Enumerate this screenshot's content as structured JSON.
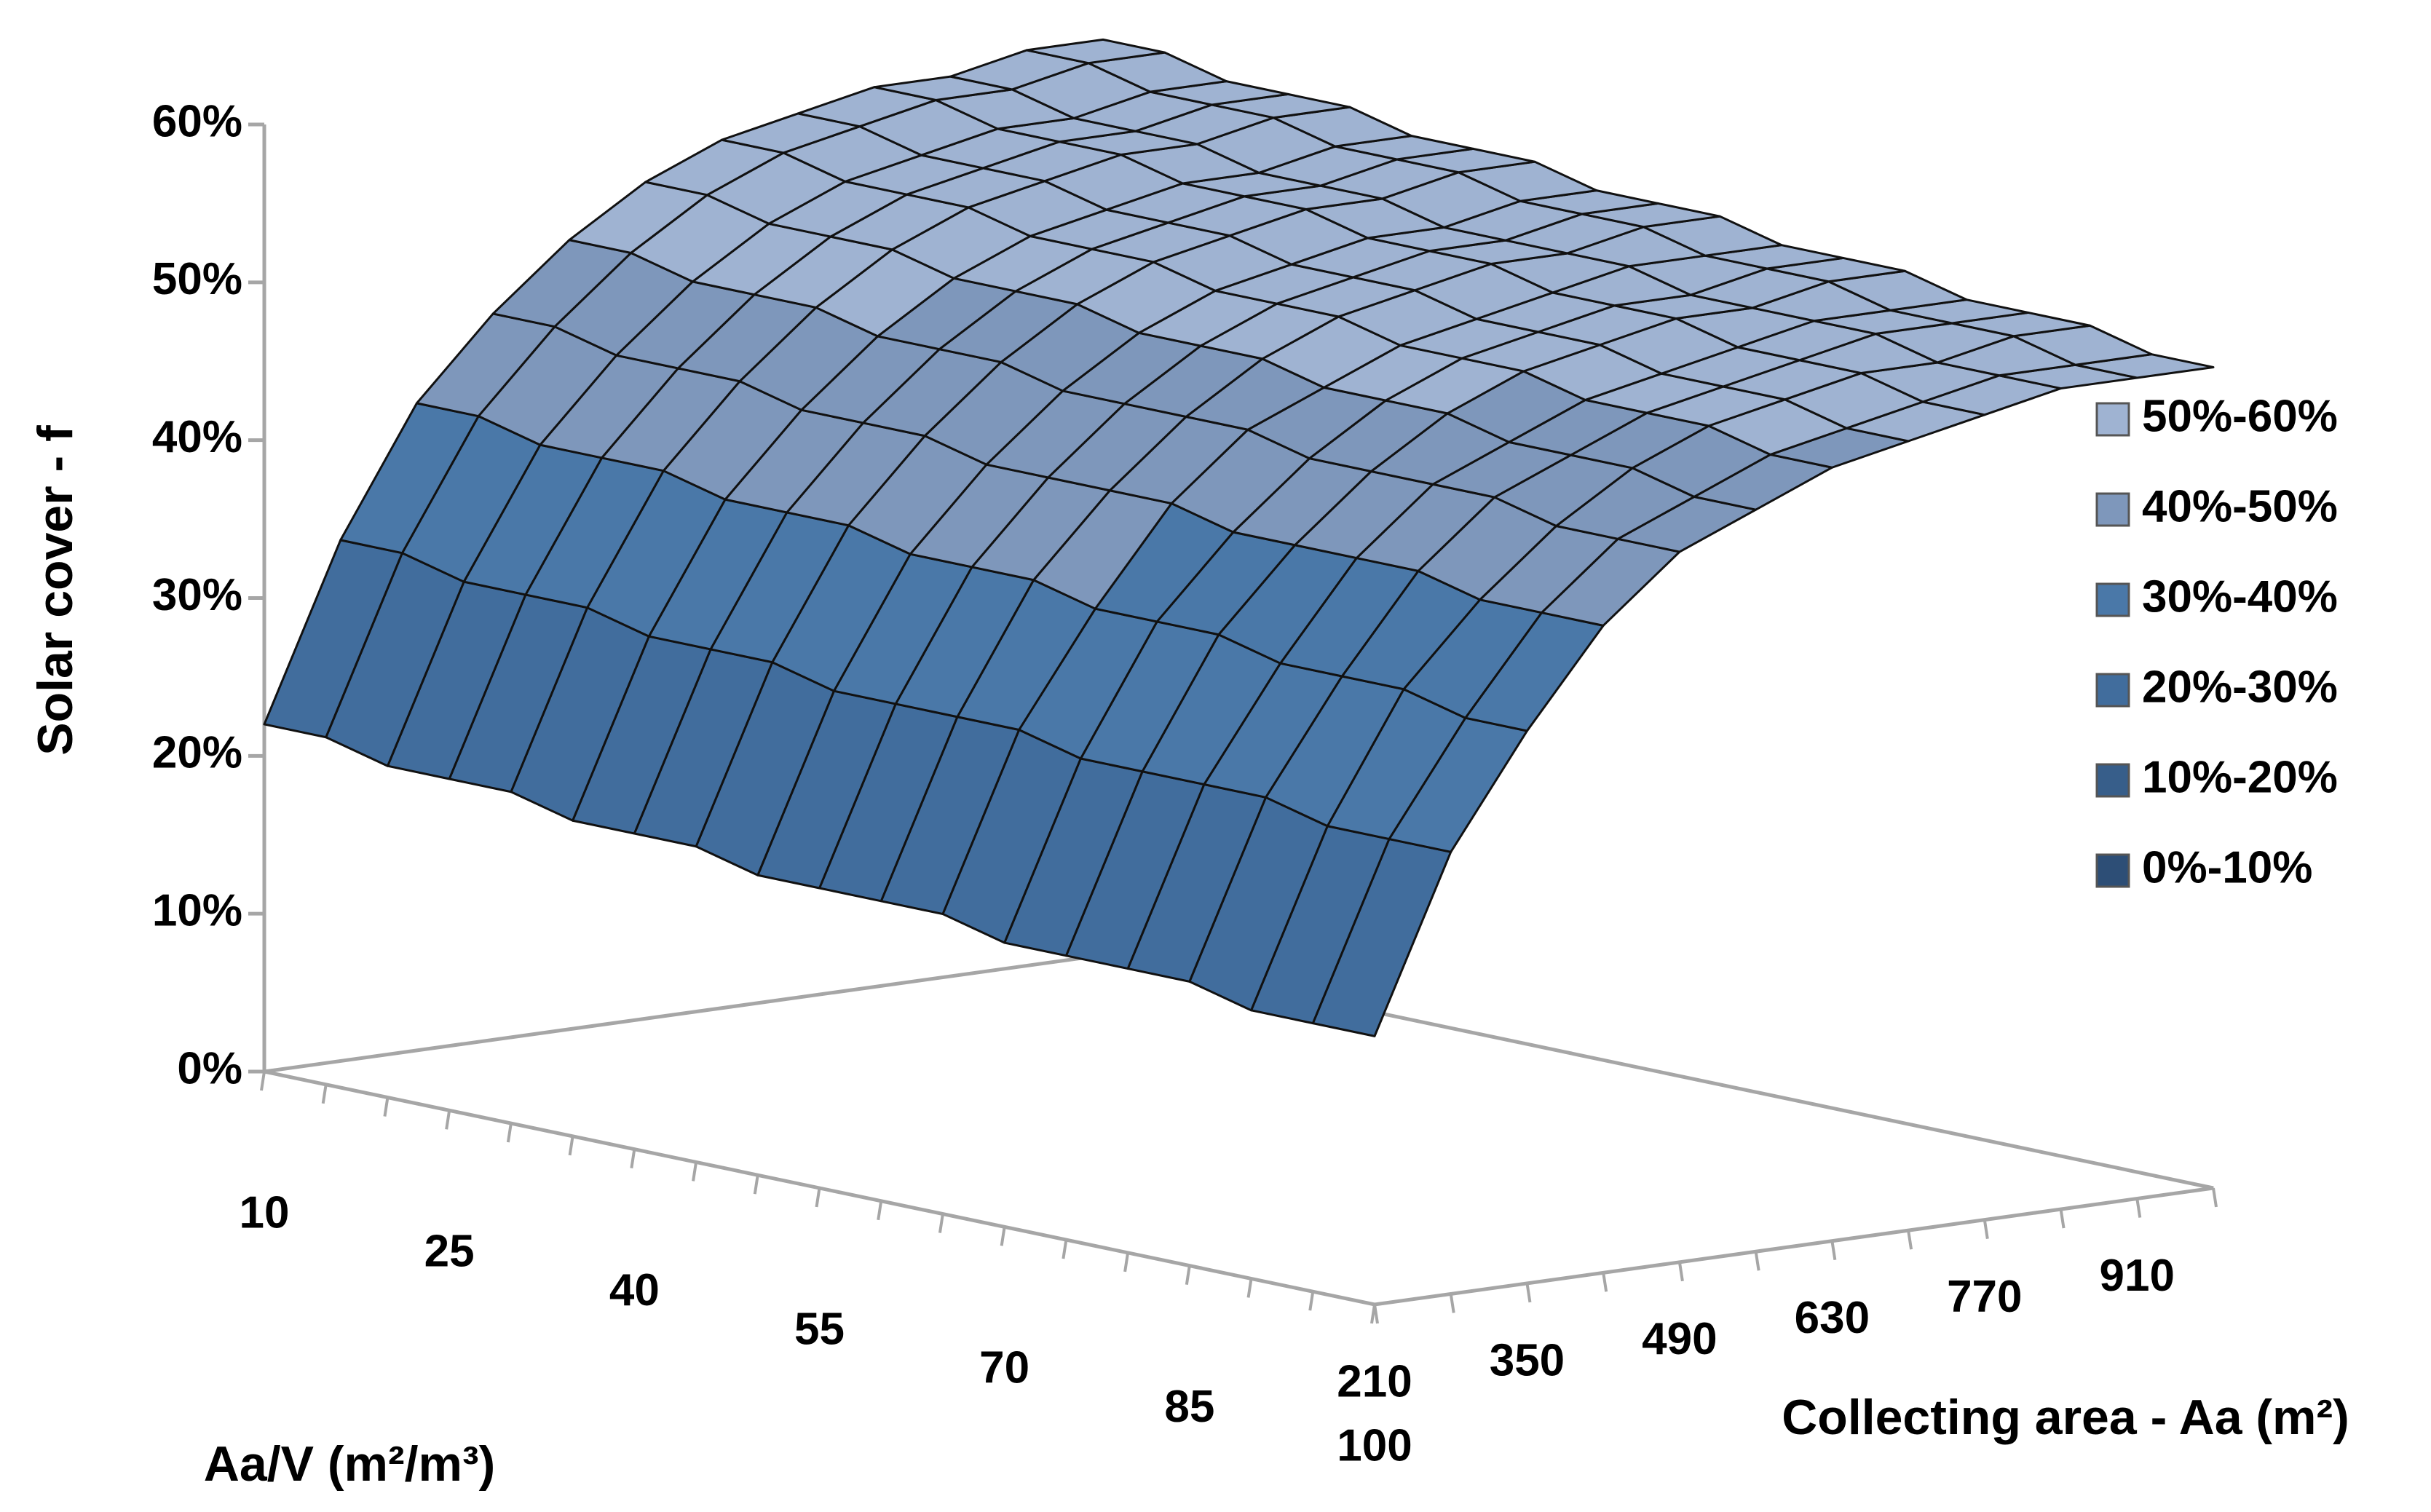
{
  "chart_data": {
    "type": "surface3d",
    "y_axis_label": "Solar cover - f",
    "x_axis_label": "Aa/V (m²/m³)",
    "z_axis_label": "Collecting area - Aa (m²)",
    "x": [
      10,
      null,
      null,
      25,
      null,
      null,
      40,
      null,
      null,
      55,
      null,
      null,
      70,
      null,
      null,
      85,
      null,
      null,
      100
    ],
    "z": [
      210,
      null,
      350,
      null,
      490,
      null,
      630,
      null,
      770,
      null,
      910,
      null
    ],
    "ylim": [
      0,
      60
    ],
    "yticks": [
      {
        "value": 0,
        "label": "0%"
      },
      {
        "value": 10,
        "label": "10%"
      },
      {
        "value": 20,
        "label": "20%"
      },
      {
        "value": 30,
        "label": "30%"
      },
      {
        "value": 40,
        "label": "40%"
      },
      {
        "value": 50,
        "label": "50%"
      },
      {
        "value": 60,
        "label": "60%"
      }
    ],
    "bands": [
      {
        "name": "50%-60%",
        "range": [
          50,
          60
        ],
        "color": "#9fb3d2"
      },
      {
        "name": "40%-50%",
        "range": [
          40,
          50
        ],
        "color": "#7e97bb"
      },
      {
        "name": "30%-40%",
        "range": [
          30,
          40
        ],
        "color": "#4a78a8"
      },
      {
        "name": "20%-30%",
        "range": [
          20,
          30
        ],
        "color": "#416d9d"
      },
      {
        "name": "10%-20%",
        "range": [
          10,
          20
        ],
        "color": "#375e8a"
      },
      {
        "name": "0%-10%",
        "range": [
          0,
          10
        ],
        "color": "#2d4e76"
      }
    ],
    "values": [
      [
        22,
        33,
        41,
        46,
        50,
        53,
        55,
        56,
        57,
        57,
        58,
        58
      ],
      [
        22,
        33,
        41,
        46,
        50,
        53,
        55,
        56,
        57,
        57,
        58,
        58
      ],
      [
        21,
        32,
        40,
        45,
        49,
        52,
        54,
        55,
        56,
        56,
        57,
        57
      ],
      [
        21,
        32,
        40,
        45,
        49,
        52,
        54,
        55,
        56,
        56,
        57,
        57
      ],
      [
        21,
        32,
        40,
        45,
        49,
        52,
        54,
        55,
        56,
        56,
        57,
        57
      ],
      [
        20,
        31,
        39,
        44,
        48,
        51,
        53,
        54,
        55,
        55,
        56,
        56
      ],
      [
        20,
        31,
        39,
        44,
        48,
        51,
        53,
        54,
        55,
        55,
        56,
        56
      ],
      [
        20,
        31,
        39,
        44,
        48,
        51,
        53,
        54,
        55,
        55,
        56,
        56
      ],
      [
        19,
        30,
        38,
        43,
        47,
        50,
        52,
        53,
        54,
        54,
        55,
        55
      ],
      [
        19,
        30,
        38,
        43,
        47,
        50,
        52,
        53,
        54,
        54,
        55,
        55
      ],
      [
        19,
        30,
        38,
        43,
        47,
        50,
        52,
        53,
        54,
        54,
        55,
        55
      ],
      [
        19,
        30,
        37,
        43,
        47,
        49,
        51,
        52,
        53,
        54,
        54,
        54
      ],
      [
        18,
        29,
        37,
        42,
        46,
        49,
        51,
        52,
        53,
        53,
        54,
        54
      ],
      [
        18,
        29,
        37,
        42,
        46,
        49,
        51,
        52,
        53,
        53,
        54,
        54
      ],
      [
        18,
        29,
        36,
        42,
        46,
        48,
        50,
        51,
        52,
        53,
        53,
        53
      ],
      [
        18,
        29,
        36,
        42,
        46,
        48,
        50,
        51,
        52,
        53,
        53,
        53
      ],
      [
        17,
        28,
        36,
        41,
        45,
        48,
        50,
        51,
        52,
        52,
        53,
        53
      ],
      [
        17,
        28,
        35,
        41,
        45,
        47,
        49,
        50,
        51,
        52,
        52,
        52
      ],
      [
        17,
        28,
        35,
        41,
        45,
        47,
        49,
        50,
        51,
        52,
        52,
        52
      ]
    ]
  }
}
